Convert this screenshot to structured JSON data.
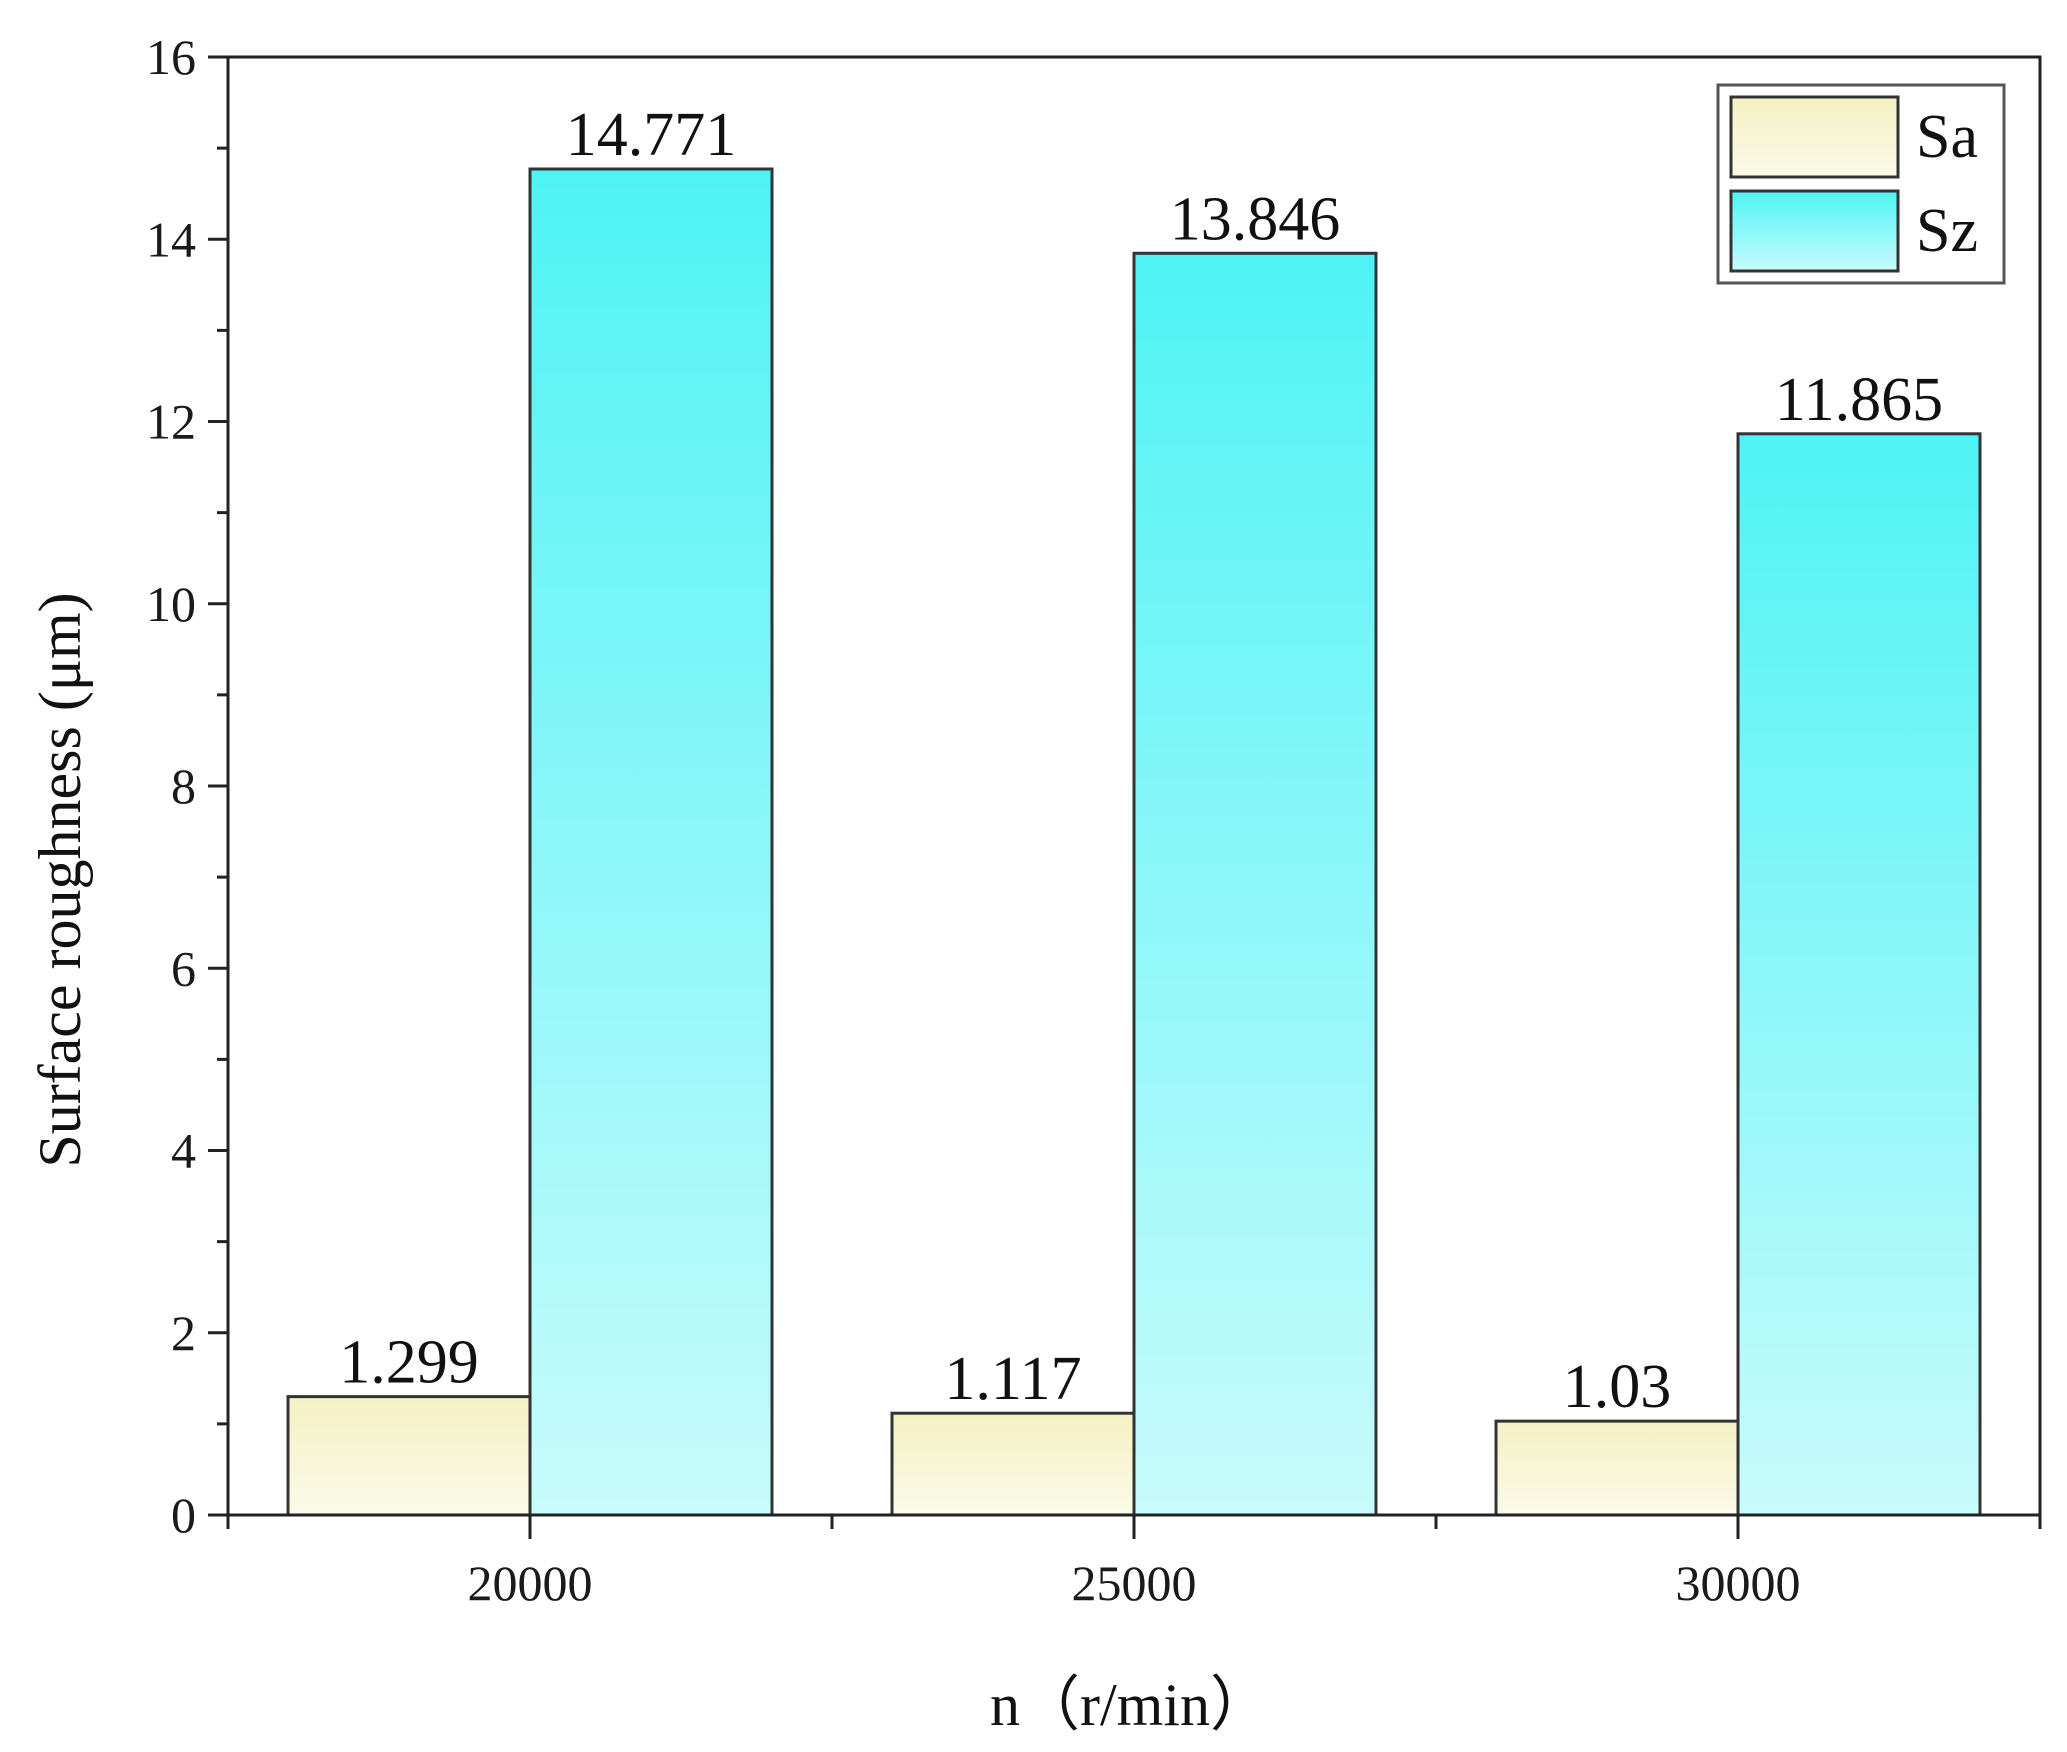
{
  "chart_data": {
    "type": "bar",
    "categories": [
      "20000",
      "25000",
      "30000"
    ],
    "series": [
      {
        "name": "Sa",
        "values": [
          1.299,
          1.117,
          1.03
        ],
        "labels": [
          "1.299",
          "1.117",
          "1.03"
        ],
        "color_top": "#f4f1c3",
        "color_bottom": "#fbfae8"
      },
      {
        "name": "Sz",
        "values": [
          14.771,
          13.846,
          11.865
        ],
        "labels": [
          "14.771",
          "13.846",
          "11.865"
        ],
        "color_top": "#4ff3f5",
        "color_bottom": "#c8fbfc"
      }
    ],
    "xlabel": "n（r/min）",
    "ylabel": "Surface roughness (μm)",
    "ylim": [
      0,
      16
    ],
    "yticks": [
      "0",
      "2",
      "4",
      "6",
      "8",
      "10",
      "12",
      "14",
      "16"
    ],
    "grid": false,
    "legend": "top-right"
  }
}
